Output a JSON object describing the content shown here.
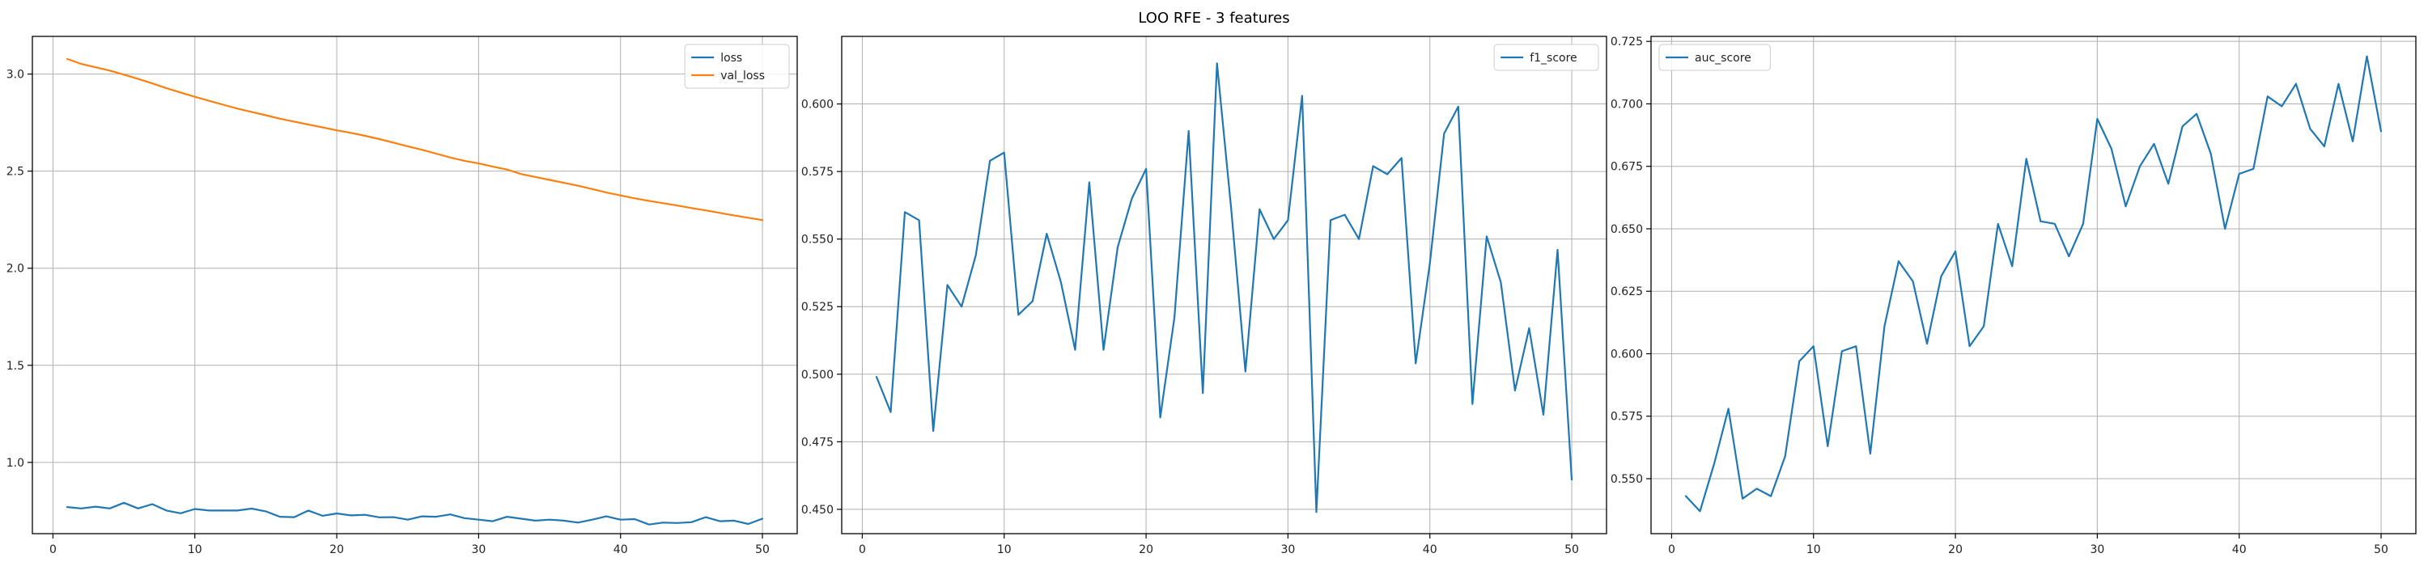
{
  "figure": {
    "title": "LOO RFE - 3 features"
  },
  "chart_data": [
    {
      "type": "line",
      "title": "",
      "xlabel": "",
      "ylabel": "",
      "grid": true,
      "legend_position": "upper right",
      "xlim": [
        -1.45,
        52.45
      ],
      "ylim": [
        0.633,
        3.194
      ],
      "xticks": [
        0,
        10,
        20,
        30,
        40,
        50
      ],
      "yticks": [
        1.0,
        1.5,
        2.0,
        2.5,
        3.0
      ],
      "ytick_decimals": 1,
      "x": [
        1,
        2,
        3,
        4,
        5,
        6,
        7,
        8,
        9,
        10,
        11,
        12,
        13,
        14,
        15,
        16,
        17,
        18,
        19,
        20,
        21,
        22,
        23,
        24,
        25,
        26,
        27,
        28,
        29,
        30,
        31,
        32,
        33,
        34,
        35,
        36,
        37,
        38,
        39,
        40,
        41,
        42,
        43,
        44,
        45,
        46,
        47,
        48,
        49,
        50
      ],
      "series": [
        {
          "name": "loss",
          "color": "#1f77b4",
          "values": [
            0.77,
            0.763,
            0.772,
            0.763,
            0.792,
            0.763,
            0.785,
            0.752,
            0.738,
            0.76,
            0.752,
            0.752,
            0.752,
            0.762,
            0.748,
            0.72,
            0.718,
            0.752,
            0.725,
            0.737,
            0.727,
            0.73,
            0.717,
            0.718,
            0.705,
            0.722,
            0.72,
            0.732,
            0.713,
            0.705,
            0.697,
            0.72,
            0.71,
            0.7,
            0.705,
            0.7,
            0.69,
            0.705,
            0.722,
            0.705,
            0.708,
            0.68,
            0.69,
            0.688,
            0.692,
            0.718,
            0.697,
            0.7,
            0.683,
            0.71
          ]
        },
        {
          "name": "val_loss",
          "color": "#ff7f0e",
          "values": [
            3.078,
            3.052,
            3.035,
            3.018,
            2.997,
            2.975,
            2.952,
            2.927,
            2.905,
            2.883,
            2.862,
            2.842,
            2.822,
            2.805,
            2.788,
            2.77,
            2.755,
            2.74,
            2.725,
            2.71,
            2.697,
            2.682,
            2.665,
            2.647,
            2.628,
            2.61,
            2.59,
            2.57,
            2.553,
            2.54,
            2.523,
            2.508,
            2.485,
            2.47,
            2.455,
            2.44,
            2.425,
            2.408,
            2.39,
            2.375,
            2.36,
            2.347,
            2.335,
            2.323,
            2.31,
            2.298,
            2.285,
            2.272,
            2.26,
            2.248
          ]
        }
      ]
    },
    {
      "type": "line",
      "title": "",
      "xlabel": "",
      "ylabel": "",
      "grid": true,
      "legend_position": "upper right",
      "xlim": [
        -1.45,
        52.45
      ],
      "ylim": [
        0.441,
        0.625
      ],
      "xticks": [
        0,
        10,
        20,
        30,
        40,
        50
      ],
      "yticks": [
        0.45,
        0.475,
        0.5,
        0.525,
        0.55,
        0.575,
        0.6
      ],
      "ytick_decimals": 3,
      "x": [
        1,
        2,
        3,
        4,
        5,
        6,
        7,
        8,
        9,
        10,
        11,
        12,
        13,
        14,
        15,
        16,
        17,
        18,
        19,
        20,
        21,
        22,
        23,
        24,
        25,
        26,
        27,
        28,
        29,
        30,
        31,
        32,
        33,
        34,
        35,
        36,
        37,
        38,
        39,
        40,
        41,
        42,
        43,
        44,
        45,
        46,
        47,
        48,
        49,
        50
      ],
      "series": [
        {
          "name": "f1_score",
          "color": "#1f77b4",
          "values": [
            0.499,
            0.486,
            0.56,
            0.557,
            0.479,
            0.533,
            0.525,
            0.544,
            0.579,
            0.582,
            0.522,
            0.527,
            0.552,
            0.534,
            0.509,
            0.571,
            0.509,
            0.547,
            0.565,
            0.576,
            0.484,
            0.521,
            0.59,
            0.493,
            0.615,
            0.561,
            0.501,
            0.561,
            0.55,
            0.557,
            0.603,
            0.449,
            0.557,
            0.559,
            0.55,
            0.577,
            0.574,
            0.58,
            0.504,
            0.541,
            0.589,
            0.599,
            0.489,
            0.551,
            0.534,
            0.494,
            0.517,
            0.485,
            0.546,
            0.461
          ]
        }
      ]
    },
    {
      "type": "line",
      "title": "",
      "xlabel": "",
      "ylabel": "",
      "grid": true,
      "legend_position": "upper left",
      "xlim": [
        -1.45,
        52.45
      ],
      "ylim": [
        0.528,
        0.727
      ],
      "xticks": [
        0,
        10,
        20,
        30,
        40,
        50
      ],
      "yticks": [
        0.55,
        0.575,
        0.6,
        0.625,
        0.65,
        0.675,
        0.7,
        0.725
      ],
      "ytick_decimals": 3,
      "x": [
        1,
        2,
        3,
        4,
        5,
        6,
        7,
        8,
        9,
        10,
        11,
        12,
        13,
        14,
        15,
        16,
        17,
        18,
        19,
        20,
        21,
        22,
        23,
        24,
        25,
        26,
        27,
        28,
        29,
        30,
        31,
        32,
        33,
        34,
        35,
        36,
        37,
        38,
        39,
        40,
        41,
        42,
        43,
        44,
        45,
        46,
        47,
        48,
        49,
        50
      ],
      "series": [
        {
          "name": "auc_score",
          "color": "#1f77b4",
          "values": [
            0.543,
            0.537,
            0.556,
            0.578,
            0.542,
            0.546,
            0.543,
            0.559,
            0.597,
            0.603,
            0.563,
            0.601,
            0.603,
            0.56,
            0.611,
            0.637,
            0.629,
            0.604,
            0.631,
            0.641,
            0.603,
            0.611,
            0.652,
            0.635,
            0.678,
            0.653,
            0.652,
            0.639,
            0.652,
            0.694,
            0.682,
            0.659,
            0.675,
            0.684,
            0.668,
            0.691,
            0.696,
            0.68,
            0.65,
            0.672,
            0.674,
            0.703,
            0.699,
            0.708,
            0.69,
            0.683,
            0.708,
            0.685,
            0.719,
            0.689
          ]
        }
      ]
    }
  ]
}
